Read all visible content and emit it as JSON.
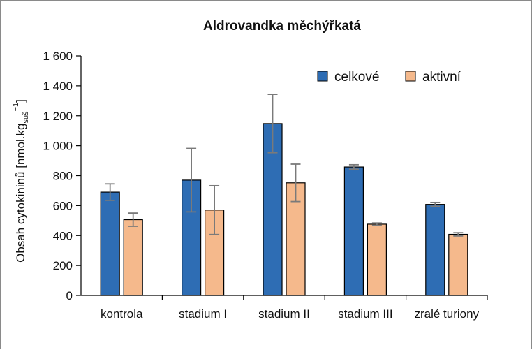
{
  "chart_data": {
    "type": "bar",
    "title": "Aldrovandka měchýřkatá",
    "ylabel": {
      "main": "Obsah cytokininů [nmol.kg",
      "sub": "suš",
      "sup": "−1",
      "close": "]"
    },
    "xlabel": "",
    "categories": [
      "kontrola",
      "stadium I",
      "stadium II",
      "stadium III",
      "zralé turiony"
    ],
    "ylim": [
      0,
      1600
    ],
    "yticks": [
      0,
      200,
      400,
      600,
      800,
      1000,
      1200,
      1400,
      1600
    ],
    "ytick_labels": [
      "0",
      "200",
      "400",
      "600",
      "800",
      "1 000",
      "1 200",
      "1 400",
      "1 600"
    ],
    "grid": false,
    "legend_position": "top-right",
    "series": [
      {
        "name": "celkové",
        "color": "#2e6db4",
        "values": [
          690,
          770,
          1148,
          858,
          608
        ],
        "errors": [
          55,
          212,
          195,
          15,
          13
        ]
      },
      {
        "name": "aktivní",
        "color": "#f5b98c",
        "values": [
          506,
          570,
          752,
          476,
          408
        ],
        "errors": [
          44,
          163,
          125,
          8,
          11
        ]
      }
    ]
  }
}
